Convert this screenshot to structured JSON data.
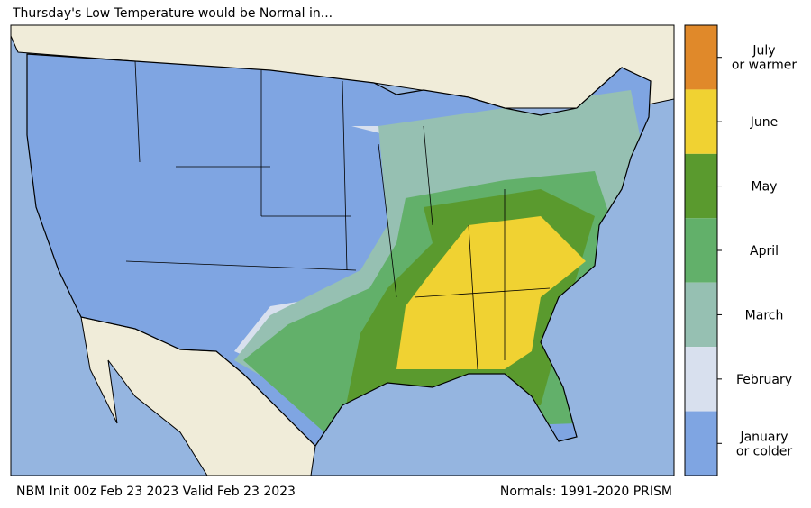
{
  "title": "Thursday's Low Temperature would be Normal in...",
  "legend": {
    "items": [
      {
        "lines": [
          "July",
          "or warmer"
        ],
        "color": "#e0892a"
      },
      {
        "lines": [
          "June"
        ],
        "color": "#f0d232"
      },
      {
        "lines": [
          "May"
        ],
        "color": "#5a9a2e"
      },
      {
        "lines": [
          "April"
        ],
        "color": "#62b06a"
      },
      {
        "lines": [
          "March"
        ],
        "color": "#96c0b2"
      },
      {
        "lines": [
          "February"
        ],
        "color": "#d8e0ee"
      },
      {
        "lines": [
          "January",
          "or colder"
        ],
        "color": "#7fa5e2"
      }
    ]
  },
  "footer": {
    "left": "NBM Init 00z Feb 23 2023 Valid Feb 23 2023",
    "right": "Normals: 1991-2020 PRISM"
  }
}
